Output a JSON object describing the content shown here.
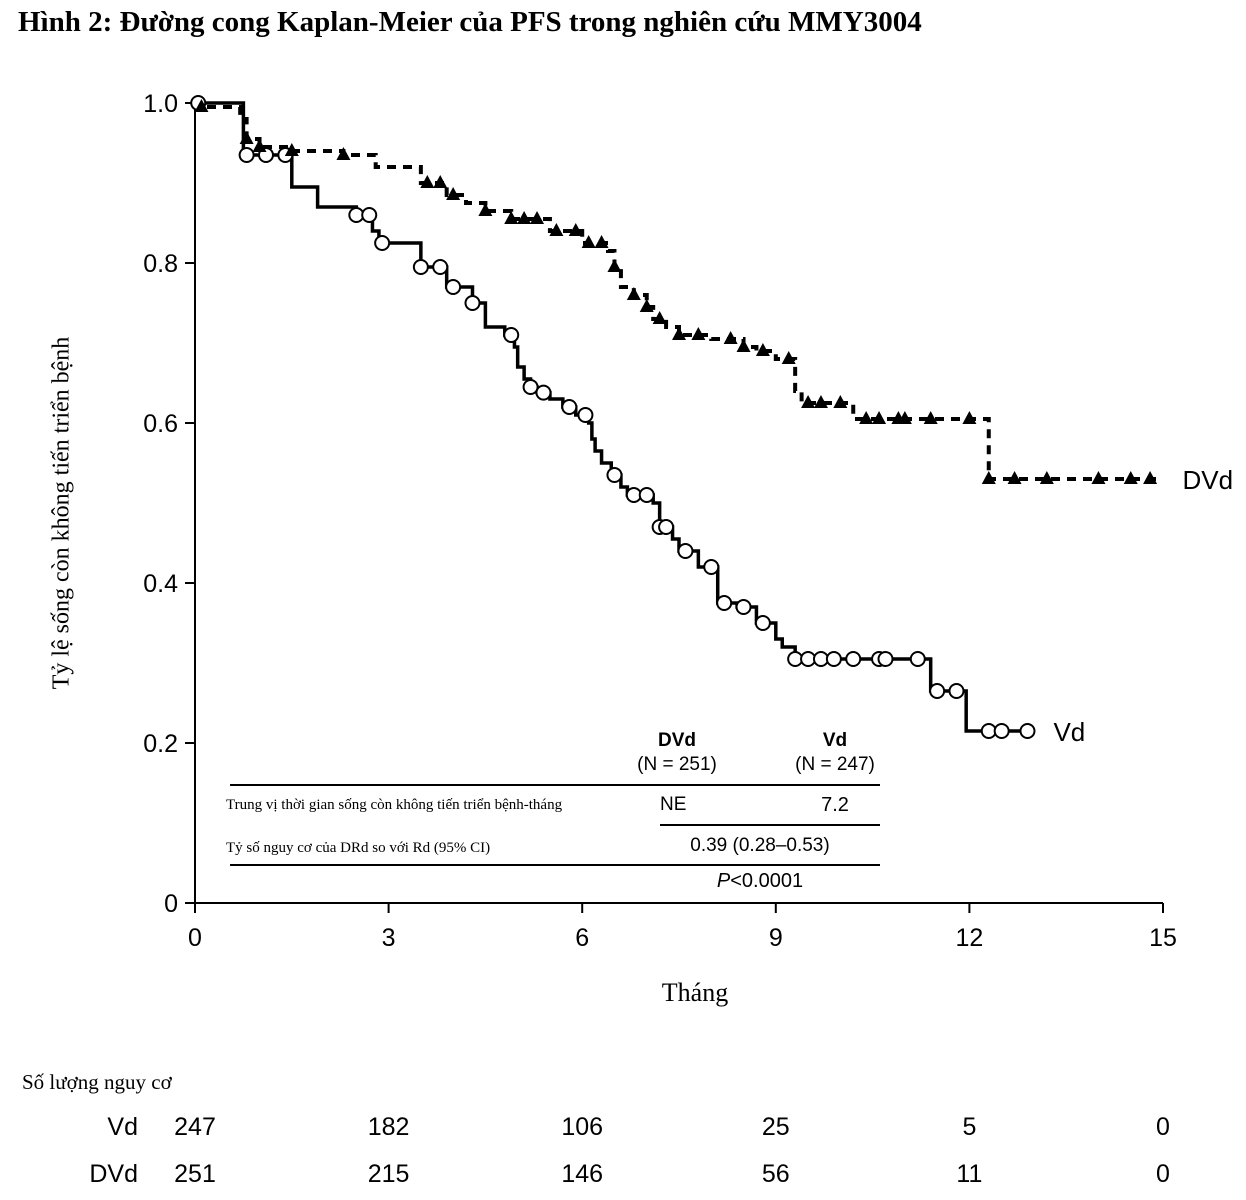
{
  "figure": {
    "title": "Hình 2: Đường cong Kaplan-Meier của PFS trong nghiên cứu MMY3004"
  },
  "chart_data": {
    "type": "line",
    "title": "Hình 2: Đường cong Kaplan-Meier của PFS trong nghiên cứu MMY3004",
    "xlabel": "Tháng",
    "ylabel": "Tỷ lệ sống còn không tiến triển bệnh",
    "xlim": [
      0,
      15
    ],
    "ylim": [
      0,
      1.0
    ],
    "x_ticks": [
      0,
      3,
      6,
      9,
      12,
      15
    ],
    "x_tick_labels": [
      "0",
      "3",
      "6",
      "9",
      "12",
      "15"
    ],
    "y_ticks": [
      0,
      0.2,
      0.4,
      0.6,
      0.8,
      1.0
    ],
    "y_tick_labels": [
      "0",
      "0.2",
      "0.4",
      "0.6",
      "0.8",
      "1.0"
    ],
    "grid": false,
    "legend": "inline labels at line ends",
    "series": [
      {
        "name": "Vd",
        "line_style": "solid",
        "marker": "open-circle",
        "color": "#000000",
        "steps": [
          [
            0,
            1.0
          ],
          [
            0.75,
            0.935
          ],
          [
            1.5,
            0.895
          ],
          [
            1.9,
            0.87
          ],
          [
            2.5,
            0.86
          ],
          [
            2.75,
            0.84
          ],
          [
            2.85,
            0.825
          ],
          [
            3.5,
            0.795
          ],
          [
            3.9,
            0.77
          ],
          [
            4.3,
            0.75
          ],
          [
            4.5,
            0.735
          ],
          [
            4.5,
            0.72
          ],
          [
            4.8,
            0.71
          ],
          [
            4.95,
            0.695
          ],
          [
            5.0,
            0.67
          ],
          [
            5.1,
            0.655
          ],
          [
            5.2,
            0.645
          ],
          [
            5.3,
            0.638
          ],
          [
            5.5,
            0.63
          ],
          [
            5.7,
            0.62
          ],
          [
            5.9,
            0.61
          ],
          [
            6.1,
            0.6
          ],
          [
            6.15,
            0.58
          ],
          [
            6.2,
            0.565
          ],
          [
            6.3,
            0.55
          ],
          [
            6.45,
            0.535
          ],
          [
            6.6,
            0.52
          ],
          [
            6.7,
            0.51
          ],
          [
            7.1,
            0.5
          ],
          [
            7.2,
            0.47
          ],
          [
            7.4,
            0.455
          ],
          [
            7.5,
            0.44
          ],
          [
            7.8,
            0.42
          ],
          [
            8.1,
            0.375
          ],
          [
            8.4,
            0.37
          ],
          [
            8.7,
            0.35
          ],
          [
            9.0,
            0.33
          ],
          [
            9.1,
            0.32
          ],
          [
            9.3,
            0.305
          ],
          [
            11.4,
            0.265
          ],
          [
            11.95,
            0.215
          ],
          [
            12.9,
            0.215
          ]
        ],
        "censor_times": [
          0.05,
          0.8,
          1.1,
          1.4,
          2.5,
          2.7,
          2.9,
          3.5,
          3.8,
          4.0,
          4.3,
          4.9,
          5.2,
          5.4,
          5.8,
          6.05,
          6.5,
          6.8,
          7.0,
          7.2,
          7.3,
          7.6,
          8.0,
          8.2,
          8.5,
          8.8,
          9.3,
          9.5,
          9.7,
          9.9,
          10.2,
          10.6,
          10.7,
          11.2,
          11.5,
          11.8,
          12.3,
          12.5,
          12.9
        ]
      },
      {
        "name": "DVd",
        "line_style": "dashed",
        "marker": "filled-triangle",
        "color": "#000000",
        "steps": [
          [
            0,
            1.0
          ],
          [
            0.1,
            0.995
          ],
          [
            0.7,
            0.98
          ],
          [
            0.8,
            0.955
          ],
          [
            1.0,
            0.945
          ],
          [
            1.5,
            0.94
          ],
          [
            2.3,
            0.935
          ],
          [
            2.8,
            0.92
          ],
          [
            3.5,
            0.9
          ],
          [
            3.9,
            0.885
          ],
          [
            4.2,
            0.875
          ],
          [
            4.5,
            0.865
          ],
          [
            4.9,
            0.855
          ],
          [
            5.5,
            0.84
          ],
          [
            6.0,
            0.825
          ],
          [
            6.4,
            0.815
          ],
          [
            6.5,
            0.795
          ],
          [
            6.6,
            0.77
          ],
          [
            6.8,
            0.76
          ],
          [
            7.0,
            0.745
          ],
          [
            7.1,
            0.73
          ],
          [
            7.3,
            0.72
          ],
          [
            7.5,
            0.71
          ],
          [
            8.0,
            0.705
          ],
          [
            8.5,
            0.695
          ],
          [
            8.7,
            0.69
          ],
          [
            9.0,
            0.68
          ],
          [
            9.3,
            0.64
          ],
          [
            9.4,
            0.625
          ],
          [
            10.2,
            0.605
          ],
          [
            12.0,
            0.605
          ],
          [
            12.3,
            0.53
          ],
          [
            14.9,
            0.53
          ]
        ],
        "censor_times": [
          0.1,
          0.8,
          1.0,
          1.5,
          2.3,
          3.6,
          3.8,
          4.0,
          4.5,
          4.9,
          5.1,
          5.3,
          5.6,
          5.9,
          6.1,
          6.3,
          6.5,
          6.8,
          7.0,
          7.2,
          7.5,
          7.8,
          8.3,
          8.5,
          8.8,
          9.2,
          9.5,
          9.7,
          10.0,
          10.4,
          10.6,
          10.9,
          11.0,
          11.4,
          12.0,
          12.3,
          12.7,
          13.2,
          14.0,
          14.5,
          14.8
        ]
      }
    ],
    "annotation_table": {
      "col_headers": [
        {
          "name": "DVd",
          "n": "(N = 251)"
        },
        {
          "name": "Vd",
          "n": "(N = 247)"
        }
      ],
      "rows": [
        {
          "label": "Trung vị thời gian sống còn không tiến triển bệnh-tháng",
          "dvd": "NE",
          "vd": "7.2"
        },
        {
          "label": "Tỷ số nguy cơ của DRd so với Rd (95% CI)",
          "value": "0.39 (0.28–0.53)"
        }
      ],
      "p_value_prefix": "P",
      "p_value_rest": "<0.0001"
    },
    "risk_table": {
      "title": "Số lượng nguy cơ",
      "times": [
        0,
        3,
        6,
        9,
        12,
        15
      ],
      "rows": [
        {
          "name": "Vd",
          "values": [
            "247",
            "182",
            "106",
            "25",
            "5",
            "0"
          ]
        },
        {
          "name": "DVd",
          "values": [
            "251",
            "215",
            "146",
            "56",
            "11",
            "0"
          ]
        }
      ]
    }
  }
}
